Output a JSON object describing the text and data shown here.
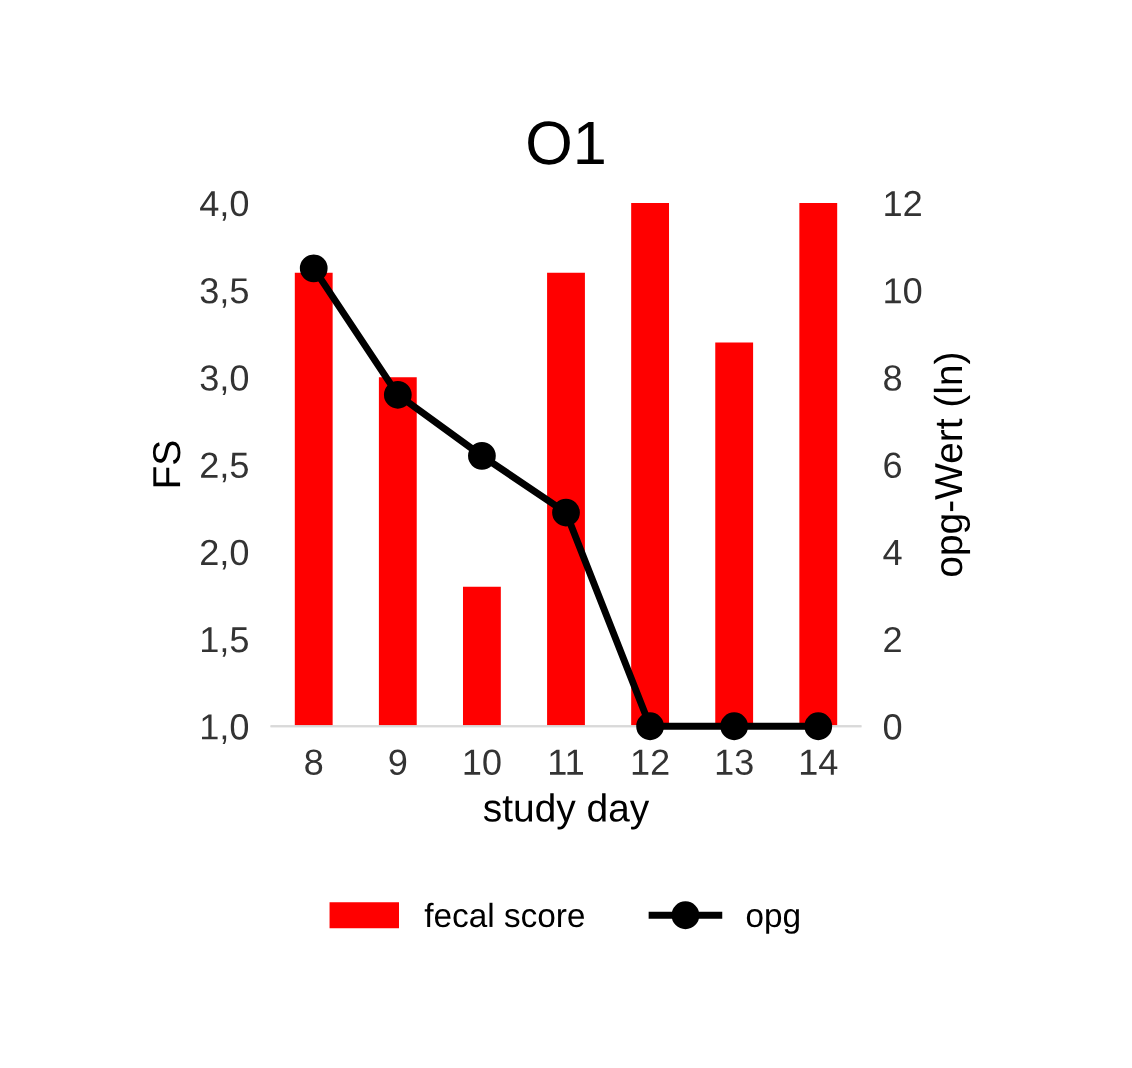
{
  "chart_data": {
    "type": "bar",
    "title": "O1",
    "xlabel": "study day",
    "ylabel": "FS",
    "y2label": "opg-Wert (ln)",
    "categories": [
      "8",
      "9",
      "10",
      "11",
      "12",
      "13",
      "14"
    ],
    "series": [
      {
        "name": "fecal score",
        "color": "#ff0000",
        "values": [
          3.6,
          3.0,
          1.8,
          3.6,
          4.0,
          3.2,
          4.0
        ]
      },
      {
        "name": "opg",
        "color": "#000000",
        "type": "line",
        "axis": "y2",
        "marker": "circle",
        "values": [
          10.5,
          7.6,
          6.2,
          4.9,
          0,
          0,
          0
        ]
      }
    ],
    "ylim": [
      1.0,
      4.0
    ],
    "yticks": [
      {
        "value": 1.0,
        "label": "1,0"
      },
      {
        "value": 1.5,
        "label": "1,5"
      },
      {
        "value": 2.0,
        "label": "2,0"
      },
      {
        "value": 2.5,
        "label": "2,5"
      },
      {
        "value": 3.0,
        "label": "3,0"
      },
      {
        "value": 3.5,
        "label": "3,5"
      },
      {
        "value": 4.0,
        "label": "4,0"
      }
    ],
    "y2lim": [
      0,
      12
    ],
    "y2ticks": [
      0,
      2,
      4,
      6,
      8,
      10,
      12
    ],
    "legend": "bottom",
    "grid": false
  }
}
